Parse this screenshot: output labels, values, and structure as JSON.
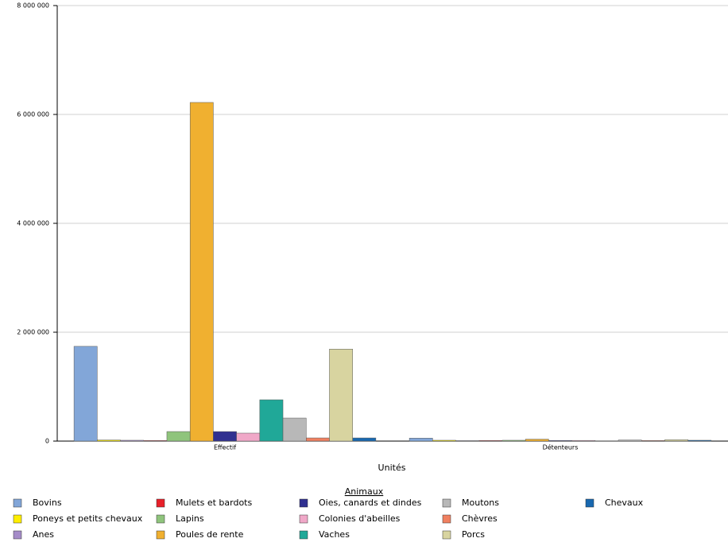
{
  "chart_data": {
    "type": "bar",
    "x_label": "Unités",
    "legend_title": "Animaux",
    "categories": [
      "Effectif",
      "Détenteurs"
    ],
    "ylim": [
      0,
      8000000
    ],
    "yticks": [
      0,
      {
        "value": 2000000,
        "label": "2 000 000"
      },
      {
        "value": 4000000,
        "label": "4 000 000"
      },
      {
        "value": 6000000,
        "label": "6 000 000"
      },
      {
        "value": 8000000,
        "label": "8 000 000"
      }
    ],
    "grid": true,
    "series": [
      {
        "name": "Bovins",
        "color": "#82a6d8",
        "values": [
          1740000,
          55000
        ]
      },
      {
        "name": "Poneys et petits chevaux",
        "color": "#ffee00",
        "values": [
          20000,
          15000
        ]
      },
      {
        "name": "Anes",
        "color": "#a58cc8",
        "values": [
          15000,
          8000
        ]
      },
      {
        "name": "Mulets et bardots",
        "color": "#e8202a",
        "values": [
          10000,
          10000
        ]
      },
      {
        "name": "Lapins",
        "color": "#8fc47c",
        "values": [
          175000,
          15000
        ]
      },
      {
        "name": "Poules de rente",
        "color": "#f0b030",
        "values": [
          6220000,
          35000
        ]
      },
      {
        "name": "Oies, canards et dindes",
        "color": "#303090",
        "values": [
          175000,
          10000
        ]
      },
      {
        "name": "Colonies d'abeilles",
        "color": "#f0a8c8",
        "values": [
          146000,
          12000
        ]
      },
      {
        "name": "Vaches",
        "color": "#20a898",
        "values": [
          759000,
          5000
        ]
      },
      {
        "name": "Moutons",
        "color": "#b8b8b8",
        "values": [
          423000,
          20000
        ]
      },
      {
        "name": "Chèvres",
        "color": "#f08060",
        "values": [
          58000,
          10000
        ]
      },
      {
        "name": "Porcs",
        "color": "#d8d4a0",
        "values": [
          1690000,
          25000
        ]
      },
      {
        "name": "Chevaux",
        "color": "#1868b0",
        "values": [
          58000,
          15000
        ]
      }
    ]
  }
}
